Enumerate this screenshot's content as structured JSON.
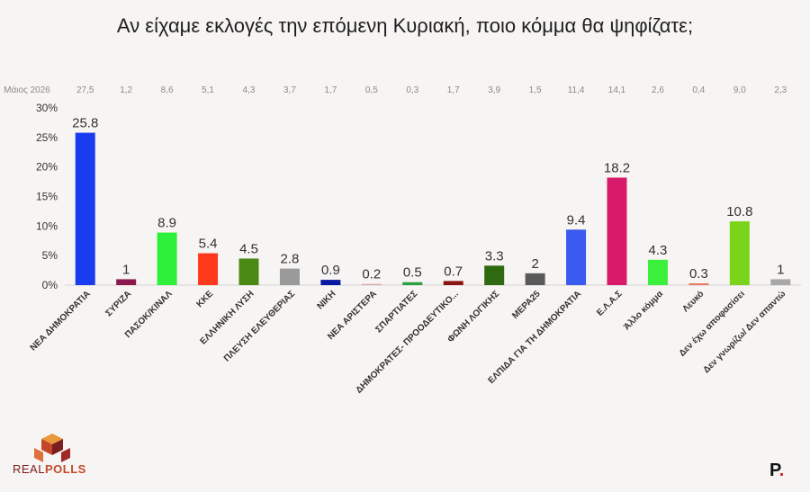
{
  "title": "Αν είχαμε εκλογές την επόμενη Κυριακή, ποιο κόμμα θα ψηφίζατε;",
  "brand": {
    "real": "REAL",
    "polls": "POLLS",
    "p_logo": "P",
    "p_dot": "."
  },
  "chart_data": {
    "type": "bar",
    "title": "Αν είχαμε εκλογές την επόμενη Κυριακή, ποιο κόμμα θα ψηφίζατε;",
    "categories": [
      "ΝΕΑ ΔΗΜΟΚΡΑΤΙΑ",
      "ΣΥΡΙΖΑ",
      "ΠΑΣΟΚ/ΚΙΝΑΛ",
      "ΚΚΕ",
      "ΕΛΛΗΝΙΚΗ ΛΥΣΗ",
      "ΠΛΕΥΣΗ ΕΛΕΥΘΕΡΙΑΣ",
      "ΝΙΚΗ",
      "ΝΕΑ ΑΡΙΣΤΕΡΑ",
      "ΣΠΑΡΤΙΑΤΕΣ",
      "ΔΗΜΟΚΡΑΤΕΣ- ΠΡΟΟΔΕΥΤΙΚΟ...",
      "ΦΩΝΗ ΛΟΓΙΚΗΣ",
      "ΜΕΡΑ25",
      "ΕΛΠΙΔΑ ΓΙΑ ΤΗ ΔΗΜΟΚΡΑΤΙΑ",
      "Ε.Λ.Α.Σ",
      "Άλλο κόμμα",
      "Λευκό",
      "Δεν έχω αποφασίσει",
      "Δεν γνωρίζω/ Δεν απαντώ"
    ],
    "values": [
      25.8,
      1,
      8.9,
      5.4,
      4.5,
      2.8,
      0.9,
      0.2,
      0.5,
      0.7,
      3.3,
      2,
      9.4,
      18.2,
      4.3,
      0.3,
      10.8,
      1
    ],
    "value_labels": [
      "25.8",
      "1",
      "8.9",
      "5.4",
      "4.5",
      "2.8",
      "0.9",
      "0.2",
      "0.5",
      "0.7",
      "3.3",
      "2",
      "9.4",
      "18.2",
      "4.3",
      "0.3",
      "10.8",
      "1"
    ],
    "colors": [
      "#1a3cf0",
      "#8a1a4e",
      "#2ef03a",
      "#ff3a1a",
      "#4a8a14",
      "#9a9a9a",
      "#0a1aa0",
      "#d9a8a8",
      "#2aa040",
      "#8a1414",
      "#2f6a10",
      "#5a5a5a",
      "#3a5af0",
      "#d81a6a",
      "#3af03a",
      "#e8785a",
      "#7ad41a",
      "#a8a8a8"
    ],
    "comparison": {
      "label": "Μάιος 2026",
      "values": [
        "27,5",
        "1,2",
        "8,6",
        "5,1",
        "4,3",
        "3,7",
        "1,7",
        "0,5",
        "0,3",
        "1,7",
        "3,9",
        "1,5",
        "11,4",
        "14,1",
        "2,6",
        "0,4",
        "9,0",
        "2,3"
      ]
    },
    "ylim": [
      0,
      30
    ],
    "yticks": [
      "0%",
      "5%",
      "10%",
      "15%",
      "20%",
      "25%",
      "30%"
    ],
    "xlabel": "",
    "ylabel": "",
    "grid": false
  }
}
